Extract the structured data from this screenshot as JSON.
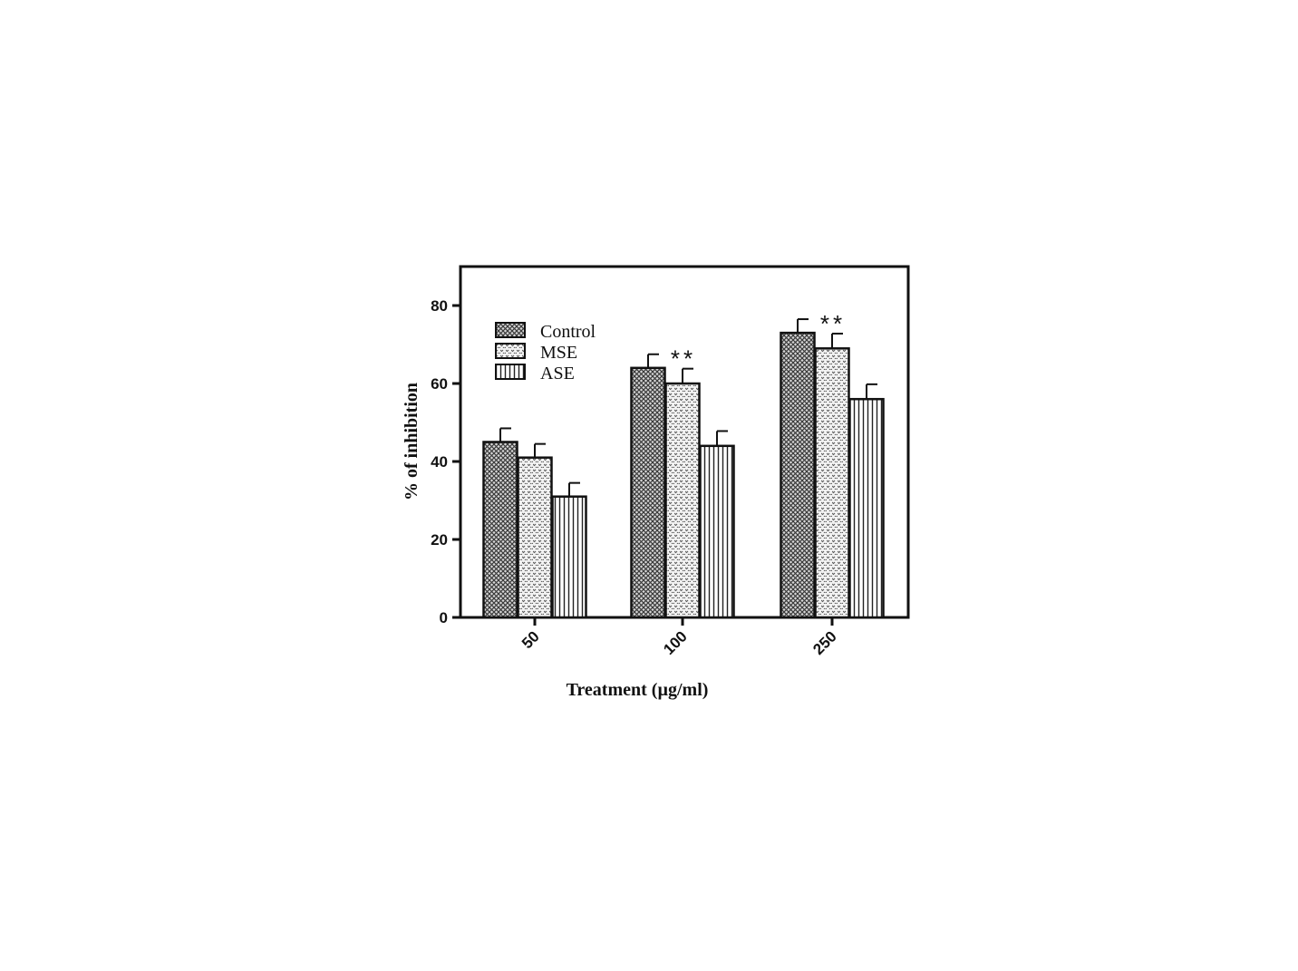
{
  "chart_data": {
    "type": "bar",
    "title": "",
    "xlabel": "Treatment (µg/ml)",
    "ylabel": "% of inhibition",
    "categories": [
      "50",
      "100",
      "250"
    ],
    "ylim": [
      0,
      90
    ],
    "yticks": [
      0,
      20,
      40,
      60,
      80
    ],
    "legend_position": "top-left",
    "series": [
      {
        "name": "Control",
        "values": [
          45,
          64,
          73
        ],
        "errors": [
          3.5,
          3.5,
          3.5
        ],
        "pattern": "crosshatch"
      },
      {
        "name": "MSE",
        "values": [
          41,
          60,
          69
        ],
        "errors": [
          3.5,
          3.8,
          3.8
        ],
        "pattern": "dotted"
      },
      {
        "name": "ASE",
        "values": [
          31,
          44,
          56
        ],
        "errors": [
          3.5,
          3.8,
          3.8
        ],
        "pattern": "vertical-lines"
      }
    ],
    "annotations": [
      {
        "category": "100",
        "series": "MSE",
        "text": "**"
      },
      {
        "category": "250",
        "series": "MSE",
        "text": "**"
      }
    ]
  }
}
